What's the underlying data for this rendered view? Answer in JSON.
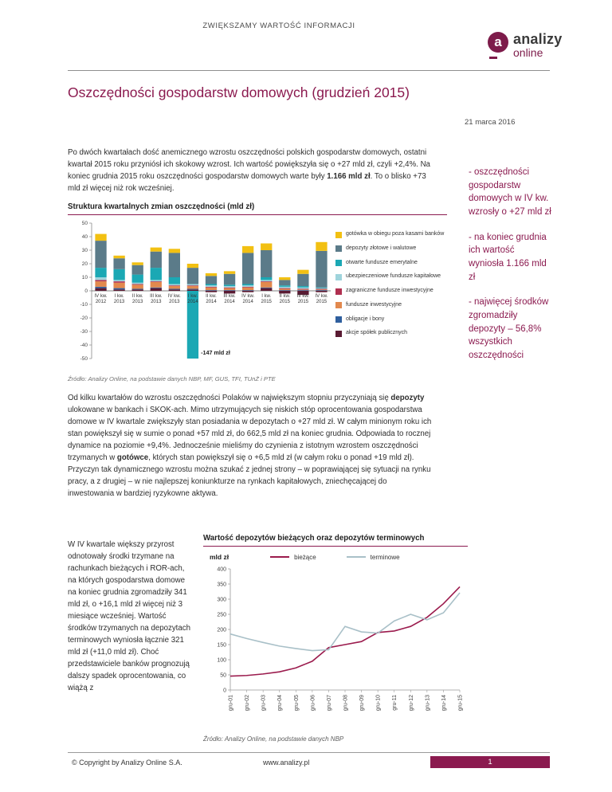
{
  "header": {
    "tagline": "ZWIĘKSZAMY WARTOŚĆ INFORMACJI",
    "logo": {
      "letter": "a",
      "name": "analizy",
      "sub": "online"
    }
  },
  "title": "Oszczędności gospodarstw domowych (grudzień 2015)",
  "date": "21 marca 2016",
  "intro": {
    "p1a": "Po dwóch kwartałach dość anemicznego wzrostu oszczędności polskich gospodarstw domowych, ostatni kwartał 2015 roku przyniósł ich skokowy wzrost. Ich wartość powiększyła się o +27 mld zł, czyli +2,4%. Na koniec grudnia 2015 roku oszczędności gospodarstw domowych warte były ",
    "p1b": "1.166 mld zł",
    "p1c": ". To o blisko +73 mld zł więcej niż rok wcześniej."
  },
  "sidebar": {
    "items": [
      "- oszczędności gospodarstw domowych w IV kw. wzrosły o +27 mld zł",
      "- na koniec grudnia ich wartość wyniosła 1.166 mld zł",
      "- najwięcej środków zgromadziły depozyty – 56,8% wszystkich oszczędności"
    ]
  },
  "body": {
    "p2a": "Od kilku kwartałów do wzrostu oszczędności Polaków w największym stopniu przyczyniają się ",
    "p2b": "depozyty",
    "p2c": " ulokowane w bankach i SKOK-ach. Mimo utrzymujących się niskich stóp oprocentowania gospodarstwa domowe w IV kwartale zwiększyły stan posiadania w depozytach o +27 mld zł. W całym minionym roku ich stan powiększył się w sumie o ponad +57 mld zł, do 662,5 mld zł na koniec grudnia. Odpowiada to rocznej dynamice na poziomie +9,4%. Jednocześnie mieliśmy do czynienia z istotnym wzrostem oszczędności trzymanych w ",
    "p2d": "gotówce",
    "p2e": ", których stan powiększył się o +6,5 mld zł (w całym roku o ponad +19 mld zł). Przyczyn tak dynamicznego wzrostu można szukać z jednej strony – w poprawiającej się sytuacji na rynku pracy, a z drugiej – w nie najlepszej koniunkturze na rynkach kapitałowych, zniechęcającej do inwestowania w bardziej ryzykowne aktywa.",
    "leftcol": "W IV kwartale większy przyrost odnotowały środki trzymane na rachunkach bieżących i ROR-ach, na których gospodarstwa domowe na koniec grudnia zgromadziły 341 mld zł, o +16,1 mld zł więcej niż 3 miesiące wcześniej. Wartość środków trzymanych na depozytach terminowych wyniosła łącznie 321 mld zł (+11,0 mld zł). Choć przedstawiciele banków prognozują dalszy spadek oprocentowania, co wiążą z"
  },
  "chart_data": [
    {
      "type": "bar",
      "stacked": true,
      "title": "Struktura kwartalnych zmian oszczędności (mld zł)",
      "ylim": [
        -50,
        50
      ],
      "ytick_step": 10,
      "categories": [
        [
          "IV kw.",
          "2012"
        ],
        [
          "I kw.",
          "2013"
        ],
        [
          "II kw.",
          "2013"
        ],
        [
          "III kw.",
          "2013"
        ],
        [
          "IV kw.",
          "2013"
        ],
        [
          "I kw.",
          "2014"
        ],
        [
          "II kw.",
          "2014"
        ],
        [
          "III kw.",
          "2014"
        ],
        [
          "IV kw.",
          "2014"
        ],
        [
          "I kw.",
          "2015"
        ],
        [
          "II kw.",
          "2015"
        ],
        [
          "III kw.",
          "2015"
        ],
        [
          "IV kw.",
          "2015"
        ]
      ],
      "series": [
        {
          "name": "akcje spółek publicznych",
          "color": "#5a1b33",
          "values": [
            2,
            1,
            1,
            2,
            1,
            1,
            -1,
            -2,
            -1,
            2,
            -2,
            -3,
            -1
          ]
        },
        {
          "name": "obligacje i bony",
          "color": "#2f5f9e",
          "values": [
            1,
            1,
            0.5,
            0.5,
            0.5,
            0.5,
            0.5,
            0.5,
            0.5,
            0.5,
            0.5,
            0.5,
            0.5
          ]
        },
        {
          "name": "fundusze inwestycyjne",
          "color": "#e2894e",
          "values": [
            4,
            4,
            3,
            4,
            2,
            2,
            2,
            1.5,
            2,
            4,
            1,
            0.5,
            0.5
          ]
        },
        {
          "name": "zagraniczne fundusze inwestycyjne",
          "color": "#b03050",
          "values": [
            1,
            1,
            0.5,
            0.5,
            0.5,
            0.5,
            0.5,
            0.5,
            0.5,
            0.5,
            0.5,
            0.5,
            0.5
          ]
        },
        {
          "name": "ubezpieczeniowe fundusze kapitałowe",
          "color": "#9fd4dc",
          "values": [
            2,
            1,
            1,
            1,
            1,
            1,
            1,
            1,
            1,
            1,
            1,
            1,
            0.5
          ]
        },
        {
          "name": "otwarte fundusze emerytalne",
          "color": "#1ba8b4",
          "values": [
            7,
            8,
            6,
            9,
            5,
            -147,
            1,
            1,
            1,
            2,
            1,
            1,
            0.5
          ]
        },
        {
          "name": "depozyty złotowe i walutowe",
          "color": "#5b7b89",
          "values": [
            20,
            8,
            7,
            12,
            18,
            12,
            6,
            8,
            23,
            20,
            4,
            9,
            27
          ]
        },
        {
          "name": "gotówka w obiegu poza kasami banków",
          "color": "#f2c012",
          "values": [
            5,
            2,
            2,
            3,
            3,
            3,
            2,
            2,
            5,
            5,
            2,
            3,
            6.5
          ]
        }
      ],
      "annotation": "-147 mld zł",
      "annotation_index": 5,
      "source": "Źródło: Analizy Online, na podstawie danych NBP, MF, GUS, TFI, TUnŻ i PTE"
    },
    {
      "type": "line",
      "title": "Wartość depozytów bieżących oraz depozytów terminowych",
      "ylabel": "mld zł",
      "ylim": [
        0,
        400
      ],
      "ytick_step": 50,
      "x": [
        "gru-01",
        "gru-02",
        "gru-03",
        "gru-04",
        "gru-05",
        "gru-06",
        "gru-07",
        "gru-08",
        "gru-09",
        "gru-10",
        "gru-11",
        "gru-12",
        "gru-13",
        "gru-14",
        "gru-15"
      ],
      "series": [
        {
          "name": "bieżące",
          "color": "#9b1b4d",
          "values": [
            46,
            48,
            53,
            60,
            73,
            95,
            140,
            150,
            160,
            190,
            195,
            210,
            240,
            285,
            341
          ]
        },
        {
          "name": "terminowe",
          "color": "#a9c0c8",
          "values": [
            185,
            170,
            157,
            145,
            137,
            130,
            133,
            210,
            192,
            188,
            228,
            250,
            232,
            255,
            321
          ]
        }
      ],
      "source": "Źródło: Analizy Online, na podstawie danych NBP"
    }
  ],
  "footer": {
    "copyright": "© Copyright by Analizy Online S.A.",
    "url": "www.analizy.pl",
    "page": "1"
  }
}
